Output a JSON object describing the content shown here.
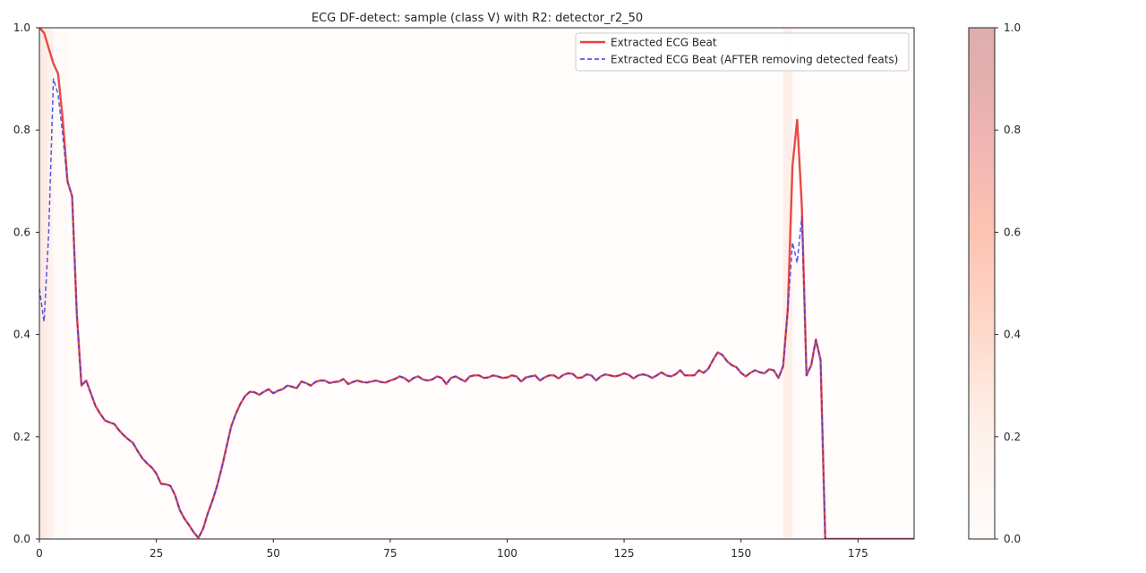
{
  "chart_data": {
    "type": "line",
    "title": "ECG DF-detect: sample (class V) with R2: detector_r2_50",
    "xlabel": "",
    "ylabel": "",
    "xlim": [
      0,
      187
    ],
    "ylim": [
      0,
      1
    ],
    "x_ticks": [
      0,
      25,
      50,
      75,
      100,
      125,
      150,
      175
    ],
    "y_ticks": [
      0.0,
      0.2,
      0.4,
      0.6,
      0.8,
      1.0
    ],
    "y_tick_labels": [
      "0.0",
      "0.2",
      "0.4",
      "0.6",
      "0.8",
      "1.0"
    ],
    "grid": false,
    "legend_position": "upper right",
    "series": [
      {
        "name": "Extracted ECG Beat",
        "color": "#e8403a",
        "style": "solid",
        "x_start": 0,
        "values": [
          1.0,
          0.99,
          0.96,
          0.93,
          0.91,
          0.82,
          0.7,
          0.67,
          0.44,
          0.3,
          0.31,
          0.285,
          0.26,
          0.245,
          0.232,
          0.228,
          0.225,
          0.213,
          0.203,
          0.195,
          0.188,
          0.172,
          0.158,
          0.148,
          0.14,
          0.128,
          0.108,
          0.107,
          0.104,
          0.086,
          0.057,
          0.04,
          0.027,
          0.013,
          0.002,
          0.02,
          0.05,
          0.075,
          0.104,
          0.14,
          0.18,
          0.22,
          0.245,
          0.265,
          0.28,
          0.288,
          0.287,
          0.282,
          0.288,
          0.293,
          0.285,
          0.29,
          0.293,
          0.3,
          0.298,
          0.295,
          0.308,
          0.305,
          0.3,
          0.307,
          0.31,
          0.31,
          0.305,
          0.307,
          0.308,
          0.313,
          0.303,
          0.307,
          0.31,
          0.307,
          0.306,
          0.308,
          0.31,
          0.307,
          0.306,
          0.31,
          0.313,
          0.318,
          0.315,
          0.308,
          0.315,
          0.318,
          0.312,
          0.31,
          0.312,
          0.318,
          0.315,
          0.303,
          0.315,
          0.318,
          0.313,
          0.308,
          0.318,
          0.32,
          0.32,
          0.315,
          0.316,
          0.32,
          0.318,
          0.315,
          0.316,
          0.32,
          0.318,
          0.308,
          0.316,
          0.318,
          0.32,
          0.31,
          0.316,
          0.32,
          0.32,
          0.314,
          0.321,
          0.324,
          0.323,
          0.315,
          0.316,
          0.322,
          0.32,
          0.31,
          0.318,
          0.322,
          0.32,
          0.318,
          0.32,
          0.324,
          0.321,
          0.314,
          0.32,
          0.322,
          0.32,
          0.315,
          0.32,
          0.326,
          0.32,
          0.318,
          0.322,
          0.33,
          0.32,
          0.32,
          0.32,
          0.33,
          0.325,
          0.333,
          0.35,
          0.365,
          0.36,
          0.348,
          0.34,
          0.336,
          0.325,
          0.318,
          0.325,
          0.33,
          0.326,
          0.324,
          0.332,
          0.33,
          0.315,
          0.338,
          0.45,
          0.73,
          0.82,
          0.65,
          0.32,
          0.34,
          0.39,
          0.35,
          0.0,
          0.0,
          0.0,
          0.0,
          0.0,
          0.0,
          0.0,
          0.0,
          0.0,
          0.0,
          0.0,
          0.0,
          0.0,
          0.0,
          0.0,
          0.0,
          0.0,
          0.0,
          0.0,
          0.0,
          0.0
        ]
      },
      {
        "name": "Extracted ECG Beat (AFTER removing detected feats)",
        "color": "#3a3ae8",
        "style": "dashed",
        "x_start": 0,
        "values": [
          0.49,
          0.425,
          0.6,
          0.9,
          0.87,
          0.79,
          0.7,
          0.67,
          0.44,
          0.3,
          0.31,
          0.285,
          0.26,
          0.245,
          0.232,
          0.228,
          0.225,
          0.213,
          0.203,
          0.195,
          0.188,
          0.172,
          0.158,
          0.148,
          0.14,
          0.128,
          0.108,
          0.107,
          0.104,
          0.086,
          0.057,
          0.04,
          0.027,
          0.013,
          0.002,
          0.02,
          0.05,
          0.075,
          0.104,
          0.14,
          0.18,
          0.22,
          0.245,
          0.265,
          0.28,
          0.288,
          0.287,
          0.282,
          0.288,
          0.293,
          0.285,
          0.29,
          0.293,
          0.3,
          0.298,
          0.295,
          0.308,
          0.305,
          0.3,
          0.307,
          0.31,
          0.31,
          0.305,
          0.307,
          0.308,
          0.313,
          0.303,
          0.307,
          0.31,
          0.307,
          0.306,
          0.308,
          0.31,
          0.307,
          0.306,
          0.31,
          0.313,
          0.318,
          0.315,
          0.308,
          0.315,
          0.318,
          0.312,
          0.31,
          0.312,
          0.318,
          0.315,
          0.303,
          0.315,
          0.318,
          0.313,
          0.308,
          0.318,
          0.32,
          0.32,
          0.315,
          0.316,
          0.32,
          0.318,
          0.315,
          0.316,
          0.32,
          0.318,
          0.308,
          0.316,
          0.318,
          0.32,
          0.31,
          0.316,
          0.32,
          0.32,
          0.314,
          0.321,
          0.324,
          0.323,
          0.315,
          0.316,
          0.322,
          0.32,
          0.31,
          0.318,
          0.322,
          0.32,
          0.318,
          0.32,
          0.324,
          0.321,
          0.314,
          0.32,
          0.322,
          0.32,
          0.315,
          0.32,
          0.326,
          0.32,
          0.318,
          0.322,
          0.33,
          0.32,
          0.32,
          0.32,
          0.33,
          0.325,
          0.333,
          0.35,
          0.365,
          0.36,
          0.348,
          0.34,
          0.336,
          0.325,
          0.318,
          0.325,
          0.33,
          0.326,
          0.324,
          0.332,
          0.33,
          0.315,
          0.338,
          0.45,
          0.58,
          0.54,
          0.63,
          0.32,
          0.34,
          0.39,
          0.35,
          0.0,
          0.0,
          0.0,
          0.0,
          0.0,
          0.0,
          0.0,
          0.0,
          0.0,
          0.0,
          0.0,
          0.0,
          0.0,
          0.0,
          0.0,
          0.0,
          0.0,
          0.0,
          0.0,
          0.0,
          0.0
        ]
      }
    ],
    "feature_importance": {
      "colormap": "Reds",
      "max_alpha": 0.35,
      "bands": [
        {
          "x0": 0,
          "x1": 1,
          "value": 0.3
        },
        {
          "x0": 1,
          "x1": 2,
          "value": 0.28
        },
        {
          "x0": 2,
          "x1": 3,
          "value": 0.22
        },
        {
          "x0": 3,
          "x1": 5,
          "value": 0.08
        },
        {
          "x0": 5,
          "x1": 6,
          "value": 0.13
        },
        {
          "x0": 6,
          "x1": 159,
          "value": 0.05
        },
        {
          "x0": 159,
          "x1": 161,
          "value": 0.25
        },
        {
          "x0": 161,
          "x1": 187,
          "value": 0.05
        }
      ]
    },
    "colorbar": {
      "range": [
        0,
        1
      ],
      "ticks": [
        0.0,
        0.2,
        0.4,
        0.6,
        0.8,
        1.0
      ],
      "tick_labels": [
        "0.0",
        "0.2",
        "0.4",
        "0.6",
        "0.8",
        "1.0"
      ]
    }
  }
}
